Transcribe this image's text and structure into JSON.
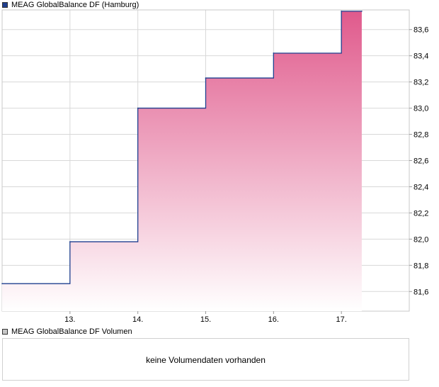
{
  "price_legend": {
    "label": "MEAG GlobalBalance DF (Hamburg)",
    "color": "#1f3f8f"
  },
  "volume_legend": {
    "label": "MEAG GlobalBalance DF Volumen",
    "color": "#c8c8c8"
  },
  "volume_panel": {
    "message": "keine Volumendaten vorhanden"
  },
  "chart_data": {
    "type": "area",
    "title": "",
    "xlabel": "",
    "ylabel": "",
    "x_tick_labels": [
      "13.",
      "14.",
      "15.",
      "16.",
      "17."
    ],
    "y_tick_labels": [
      "81,6",
      "81,8",
      "82,0",
      "82,2",
      "82,4",
      "82,6",
      "82,8",
      "83,0",
      "83,2",
      "83,4",
      "83,6"
    ],
    "ylim": [
      81.45,
      83.75
    ],
    "grid": true,
    "series": [
      {
        "name": "MEAG GlobalBalance DF (Hamburg)",
        "line_color": "#1f3f8f",
        "fill_top": "#e05a8c",
        "fill_bottom": "#ffffff",
        "x": [
          12.0,
          13.0,
          14.0,
          15.0,
          16.0,
          17.0,
          17.3
        ],
        "values": [
          81.66,
          81.98,
          83.0,
          83.23,
          83.42,
          83.74,
          83.74
        ]
      }
    ]
  }
}
